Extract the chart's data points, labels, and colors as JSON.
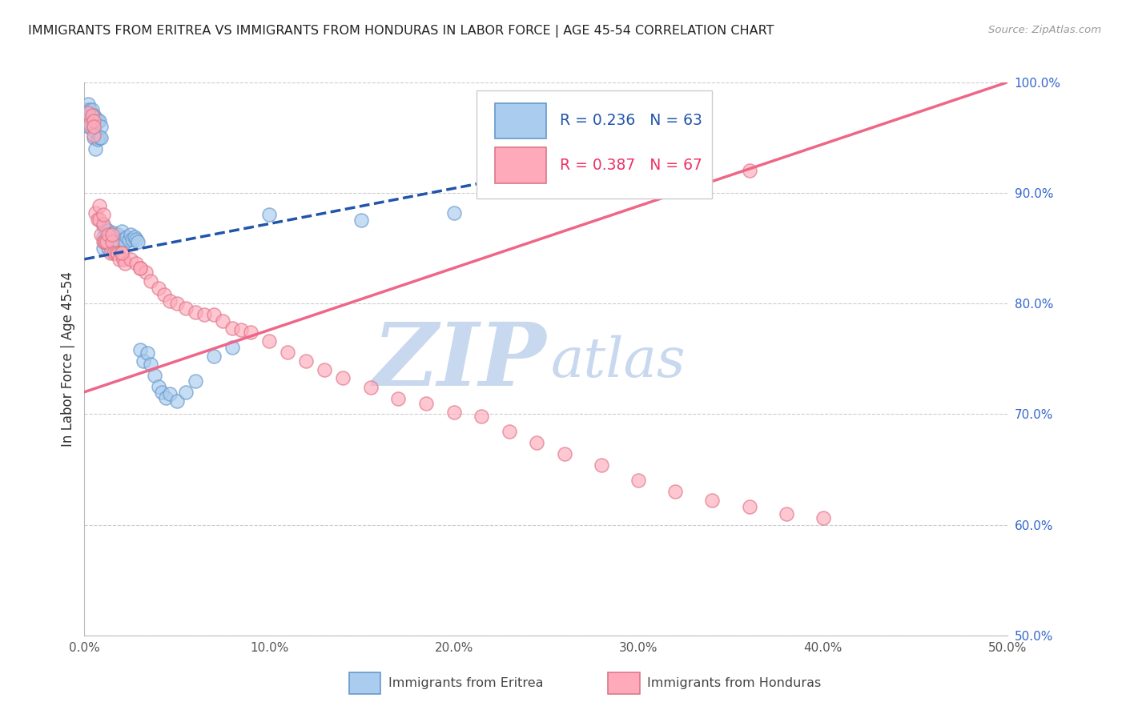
{
  "title": "IMMIGRANTS FROM ERITREA VS IMMIGRANTS FROM HONDURAS IN LABOR FORCE | AGE 45-54 CORRELATION CHART",
  "source": "Source: ZipAtlas.com",
  "ylabel": "In Labor Force | Age 45-54",
  "xlim": [
    0.0,
    0.5
  ],
  "ylim": [
    0.5,
    1.0
  ],
  "xticks": [
    0.0,
    0.1,
    0.2,
    0.3,
    0.4,
    0.5
  ],
  "xticklabels": [
    "0.0%",
    "10.0%",
    "20.0%",
    "30.0%",
    "40.0%",
    "50.0%"
  ],
  "yticks_right": [
    0.5,
    0.6,
    0.7,
    0.8,
    0.9,
    1.0
  ],
  "yticklabels_right": [
    "50.0%",
    "60.0%",
    "70.0%",
    "80.0%",
    "90.0%",
    "100.0%"
  ],
  "eritrea_face_color": "#aaccee",
  "eritrea_edge_color": "#6699cc",
  "eritrea_line_color": "#2255aa",
  "honduras_face_color": "#ffaabb",
  "honduras_edge_color": "#dd7788",
  "honduras_line_color": "#ee6688",
  "eritrea_R": "0.236",
  "eritrea_N": "63",
  "honduras_R": "0.387",
  "honduras_N": "67",
  "legend_eritrea_color": "#2255aa",
  "legend_honduras_color": "#ee3366",
  "watermark_zip_color": "#c8d8ee",
  "watermark_atlas_color": "#c8d8ee",
  "eritrea_x": [
    0.001,
    0.002,
    0.002,
    0.003,
    0.003,
    0.004,
    0.004,
    0.005,
    0.005,
    0.005,
    0.006,
    0.006,
    0.006,
    0.007,
    0.007,
    0.008,
    0.008,
    0.009,
    0.009,
    0.01,
    0.01,
    0.01,
    0.011,
    0.011,
    0.012,
    0.012,
    0.013,
    0.013,
    0.014,
    0.015,
    0.015,
    0.016,
    0.016,
    0.017,
    0.018,
    0.019,
    0.02,
    0.021,
    0.022,
    0.023,
    0.024,
    0.025,
    0.026,
    0.027,
    0.028,
    0.029,
    0.03,
    0.032,
    0.034,
    0.036,
    0.038,
    0.04,
    0.042,
    0.044,
    0.046,
    0.05,
    0.055,
    0.06,
    0.07,
    0.08,
    0.1,
    0.15,
    0.2
  ],
  "eritrea_y": [
    0.975,
    0.98,
    0.96,
    0.975,
    0.96,
    0.975,
    0.962,
    0.97,
    0.96,
    0.95,
    0.968,
    0.955,
    0.94,
    0.965,
    0.948,
    0.965,
    0.95,
    0.96,
    0.95,
    0.87,
    0.86,
    0.85,
    0.868,
    0.856,
    0.864,
    0.854,
    0.866,
    0.85,
    0.862,
    0.86,
    0.848,
    0.864,
    0.855,
    0.858,
    0.862,
    0.855,
    0.865,
    0.858,
    0.855,
    0.86,
    0.857,
    0.862,
    0.858,
    0.86,
    0.858,
    0.856,
    0.758,
    0.748,
    0.755,
    0.745,
    0.735,
    0.725,
    0.72,
    0.715,
    0.718,
    0.712,
    0.72,
    0.73,
    0.752,
    0.76,
    0.88,
    0.875,
    0.882
  ],
  "honduras_x": [
    0.002,
    0.003,
    0.004,
    0.005,
    0.005,
    0.006,
    0.007,
    0.008,
    0.009,
    0.01,
    0.01,
    0.011,
    0.012,
    0.013,
    0.014,
    0.015,
    0.016,
    0.017,
    0.018,
    0.019,
    0.02,
    0.021,
    0.022,
    0.025,
    0.028,
    0.03,
    0.033,
    0.036,
    0.04,
    0.043,
    0.046,
    0.05,
    0.055,
    0.06,
    0.065,
    0.07,
    0.075,
    0.08,
    0.085,
    0.09,
    0.1,
    0.11,
    0.12,
    0.13,
    0.14,
    0.155,
    0.17,
    0.185,
    0.2,
    0.215,
    0.23,
    0.245,
    0.26,
    0.28,
    0.3,
    0.32,
    0.34,
    0.36,
    0.38,
    0.4,
    0.005,
    0.008,
    0.01,
    0.015,
    0.02,
    0.03,
    0.36
  ],
  "honduras_y": [
    0.972,
    0.962,
    0.97,
    0.965,
    0.952,
    0.882,
    0.876,
    0.876,
    0.862,
    0.872,
    0.856,
    0.856,
    0.856,
    0.862,
    0.846,
    0.856,
    0.846,
    0.846,
    0.845,
    0.84,
    0.846,
    0.84,
    0.836,
    0.84,
    0.836,
    0.832,
    0.828,
    0.82,
    0.814,
    0.808,
    0.802,
    0.8,
    0.796,
    0.792,
    0.79,
    0.79,
    0.784,
    0.778,
    0.776,
    0.774,
    0.766,
    0.756,
    0.748,
    0.74,
    0.733,
    0.724,
    0.714,
    0.71,
    0.702,
    0.698,
    0.684,
    0.674,
    0.664,
    0.654,
    0.64,
    0.63,
    0.622,
    0.616,
    0.61,
    0.606,
    0.96,
    0.888,
    0.88,
    0.862,
    0.846,
    0.832,
    0.92
  ],
  "blue_trend_x0": 0.0,
  "blue_trend_x1": 0.25,
  "blue_trend_y0": 0.84,
  "blue_trend_y1": 0.92,
  "pink_trend_x0": 0.0,
  "pink_trend_x1": 0.5,
  "pink_trend_y0": 0.72,
  "pink_trend_y1": 1.0
}
